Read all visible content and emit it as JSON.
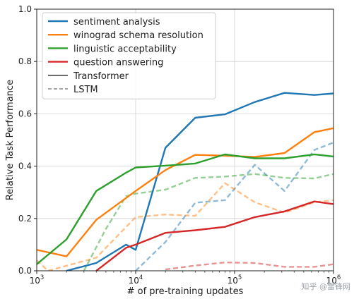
{
  "chart_data": {
    "type": "line",
    "xlabel": "# of pre-training updates",
    "ylabel": "Relative Task Performance",
    "xscale": "log",
    "xlim": [
      1000,
      1000000
    ],
    "ylim": [
      0,
      1.0
    ],
    "x_ticks": [
      1000,
      10000,
      100000,
      1000000
    ],
    "x_tick_labels": [
      {
        "base": "10",
        "exp": "3"
      },
      {
        "base": "10",
        "exp": "4"
      },
      {
        "base": "10",
        "exp": "5"
      },
      {
        "base": "10",
        "exp": "6"
      }
    ],
    "y_ticks": [
      0,
      0.2,
      0.4,
      0.6,
      0.8,
      1.0
    ],
    "y_tick_labels": [
      "0.0",
      "0.2",
      "0.4",
      "0.6",
      "0.8",
      "1.0"
    ],
    "grid": true,
    "legend_position": "top-left",
    "legend": [
      {
        "label": "sentiment analysis",
        "color": "#1f77b4",
        "style": "solid"
      },
      {
        "label": "winograd schema resolution",
        "color": "#ff7f0e",
        "style": "solid"
      },
      {
        "label": "linguistic acceptability",
        "color": "#2ca02c",
        "style": "solid"
      },
      {
        "label": "question answering",
        "color": "#d62728",
        "style": "solid"
      },
      {
        "label": "Transformer",
        "color": "#444444",
        "style": "solid"
      },
      {
        "label": "LSTM",
        "color": "#888888",
        "style": "dashed"
      }
    ],
    "series": [
      {
        "task": "sentiment analysis",
        "model": "Transformer",
        "color": "#1f77b4",
        "dashed": false,
        "x": [
          2000,
          4000,
          8000,
          10000,
          20000,
          40000,
          80000,
          160000,
          320000,
          640000,
          1000000
        ],
        "y": [
          0.0,
          0.03,
          0.1,
          0.08,
          0.47,
          0.585,
          0.598,
          0.645,
          0.68,
          0.672,
          0.678
        ]
      },
      {
        "task": "winograd schema resolution",
        "model": "Transformer",
        "color": "#ff7f0e",
        "dashed": false,
        "x": [
          1000,
          2000,
          4000,
          10000,
          20000,
          40000,
          80000,
          160000,
          320000,
          640000,
          1000000
        ],
        "y": [
          0.08,
          0.055,
          0.195,
          0.305,
          0.385,
          0.443,
          0.44,
          0.435,
          0.45,
          0.53,
          0.545
        ]
      },
      {
        "task": "linguistic acceptability",
        "model": "Transformer",
        "color": "#2ca02c",
        "dashed": false,
        "x": [
          1000,
          2000,
          4000,
          8000,
          10000,
          20000,
          40000,
          80000,
          160000,
          320000,
          640000,
          1000000
        ],
        "y": [
          0.025,
          0.12,
          0.305,
          0.375,
          0.395,
          0.402,
          0.41,
          0.445,
          0.43,
          0.43,
          0.445,
          0.437
        ]
      },
      {
        "task": "question answering",
        "model": "Transformer",
        "color": "#d62728",
        "dashed": false,
        "x": [
          4000,
          8000,
          10000,
          20000,
          40000,
          80000,
          160000,
          320000,
          640000,
          1000000
        ],
        "y": [
          0.0,
          0.088,
          0.1,
          0.145,
          0.155,
          0.168,
          0.205,
          0.227,
          0.265,
          0.255
        ]
      },
      {
        "task": "sentiment analysis",
        "model": "LSTM",
        "color": "#1f77b4",
        "dashed": true,
        "x": [
          10000,
          20000,
          40000,
          80000,
          160000,
          320000,
          640000,
          1000000
        ],
        "y": [
          0.0,
          0.11,
          0.26,
          0.27,
          0.405,
          0.305,
          0.462,
          0.49
        ]
      },
      {
        "task": "winograd schema resolution",
        "model": "LSTM",
        "color": "#ff7f0e",
        "dashed": true,
        "x": [
          1000,
          1300,
          4000,
          10000,
          20000,
          40000,
          80000,
          160000,
          320000,
          640000,
          1000000
        ],
        "y": [
          0.04,
          0.0,
          0.05,
          0.205,
          0.215,
          0.21,
          0.335,
          0.262,
          0.222,
          0.262,
          0.27
        ]
      },
      {
        "task": "linguistic acceptability",
        "model": "LSTM",
        "color": "#2ca02c",
        "dashed": true,
        "x": [
          3000,
          5000,
          8000,
          10000,
          20000,
          40000,
          80000,
          160000,
          320000,
          640000,
          1000000
        ],
        "y": [
          0.0,
          0.16,
          0.285,
          0.295,
          0.31,
          0.355,
          0.36,
          0.37,
          0.355,
          0.353,
          0.37
        ]
      },
      {
        "task": "question answering",
        "model": "LSTM",
        "color": "#d62728",
        "dashed": true,
        "x": [
          20000,
          40000,
          80000,
          160000,
          320000,
          640000,
          1000000
        ],
        "y": [
          0.005,
          0.02,
          0.032,
          0.03,
          0.015,
          0.015,
          0.025
        ]
      }
    ]
  },
  "watermark": "知乎 @雷锋网"
}
